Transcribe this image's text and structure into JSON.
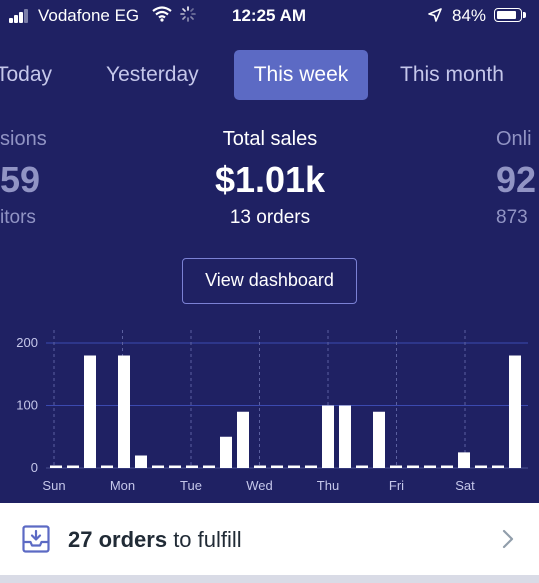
{
  "status_bar": {
    "carrier": "Vodafone EG",
    "time": "12:25 AM",
    "battery": "84%"
  },
  "tabs": [
    {
      "label": "Today",
      "active": false
    },
    {
      "label": "Yesterday",
      "active": false
    },
    {
      "label": "This week",
      "active": true
    },
    {
      "label": "This month",
      "active": false
    }
  ],
  "metrics": {
    "left": {
      "title": "sions",
      "value": "59",
      "sub": "itors"
    },
    "center": {
      "title": "Total sales",
      "value": "$1.01k",
      "sub": "13 orders"
    },
    "right": {
      "title": "Onli",
      "value": "92",
      "sub": "873"
    }
  },
  "view_dashboard_label": "View dashboard",
  "chart_data": {
    "type": "bar",
    "y_ticks": [
      0,
      100,
      200
    ],
    "ylim": [
      0,
      220
    ],
    "x_labels": [
      "Sun",
      "Mon",
      "Tue",
      "Wed",
      "Thu",
      "Fri",
      "Sat"
    ],
    "values": [
      0,
      0,
      180,
      0,
      180,
      20,
      0,
      0,
      0,
      0,
      50,
      90,
      0,
      0,
      0,
      0,
      100,
      100,
      0,
      90,
      0,
      0,
      0,
      0,
      25,
      0,
      0,
      180
    ],
    "bar_color": "#ffffff",
    "grid_color": "#3b4ab0"
  },
  "fulfill": {
    "count": "27 orders",
    "suffix": "to fulfill"
  }
}
